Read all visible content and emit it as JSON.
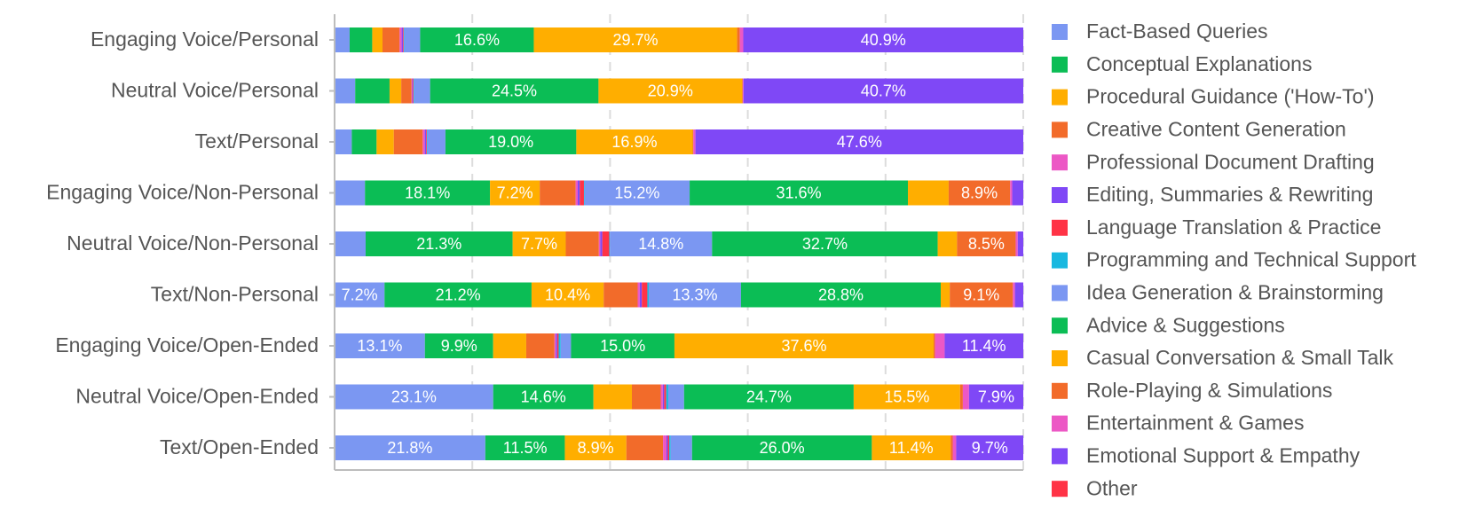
{
  "chart_data": {
    "type": "bar",
    "orientation": "horizontal",
    "stacked": true,
    "normalized_to_percent": true,
    "grid": true,
    "legend_position": "right",
    "xlabel": "",
    "ylabel": "",
    "categories": [
      "Engaging Voice/Personal",
      "Neutral Voice/Personal",
      "Text/Personal",
      "Engaging Voice/Non-Personal",
      "Neutral Voice/Non-Personal",
      "Text/Non-Personal",
      "Engaging Voice/Open-Ended",
      "Neutral Voice/Open-Ended",
      "Text/Open-Ended"
    ],
    "series": [
      {
        "name": "Fact-Based Queries",
        "color": "#7b97f2",
        "values": [
          2.2,
          3.0,
          2.5,
          4.4,
          4.5,
          7.2,
          13.1,
          23.1,
          21.8
        ]
      },
      {
        "name": "Conceptual Explanations",
        "color": "#0bbd55",
        "values": [
          3.3,
          5.0,
          3.6,
          18.1,
          21.3,
          21.2,
          9.9,
          14.6,
          11.5
        ]
      },
      {
        "name": "Procedural Guidance ('How-To')",
        "color": "#ffae00",
        "values": [
          1.5,
          1.7,
          2.5,
          7.2,
          7.7,
          10.4,
          4.8,
          5.6,
          8.9
        ]
      },
      {
        "name": "Creative Content Generation",
        "color": "#f26b2a",
        "values": [
          2.5,
          1.5,
          4.2,
          5.2,
          4.8,
          4.9,
          4.1,
          4.2,
          5.3
        ]
      },
      {
        "name": "Professional Document Drafting",
        "color": "#ec58c5",
        "values": [
          0.3,
          0.1,
          0.3,
          0.3,
          0.2,
          0.3,
          0.2,
          0.3,
          0.5
        ]
      },
      {
        "name": "Editing, Summaries & Rewriting",
        "color": "#7f48f6",
        "values": [
          0.2,
          0.1,
          0.2,
          0.3,
          0.3,
          0.3,
          0.2,
          0.2,
          0.2
        ]
      },
      {
        "name": "Language Translation & Practice",
        "color": "#ff3346",
        "values": [
          0.1,
          0.1,
          0.1,
          0.6,
          1.0,
          0.8,
          0.2,
          0.3,
          0.2
        ]
      },
      {
        "name": "Programming and Technical Support",
        "color": "#19b8e0",
        "values": [
          0.1,
          0.1,
          0.1,
          0.1,
          0.1,
          0.2,
          0.3,
          0.3,
          0.2
        ]
      },
      {
        "name": "Idea Generation & Brainstorming",
        "color": "#7b97f2",
        "values": [
          2.3,
          2.3,
          2.6,
          15.2,
          14.8,
          13.3,
          1.5,
          2.3,
          3.1
        ]
      },
      {
        "name": "Advice & Suggestions",
        "color": "#0bbd55",
        "values": [
          16.6,
          24.5,
          19.0,
          31.6,
          32.7,
          28.8,
          15.0,
          24.7,
          26.0
        ]
      },
      {
        "name": "Casual Conversation & Small Talk",
        "color": "#ffae00",
        "values": [
          29.7,
          20.9,
          16.9,
          5.9,
          2.8,
          1.3,
          37.6,
          15.5,
          11.4
        ]
      },
      {
        "name": "Role-Playing & Simulations",
        "color": "#f26b2a",
        "values": [
          0.4,
          0.1,
          0.1,
          8.9,
          8.5,
          9.1,
          0.2,
          0.4,
          0.3
        ]
      },
      {
        "name": "Entertainment & Games",
        "color": "#ec58c5",
        "values": [
          0.5,
          0.1,
          0.3,
          0.3,
          0.3,
          0.3,
          1.4,
          0.9,
          0.5
        ]
      },
      {
        "name": "Emotional Support & Empathy",
        "color": "#7f48f6",
        "values": [
          40.9,
          40.7,
          47.6,
          1.6,
          0.8,
          1.2,
          11.4,
          7.9,
          9.7
        ]
      },
      {
        "name": "Other",
        "color": "#ff3346",
        "values": [
          0.0,
          0.0,
          0.0,
          0.0,
          0.0,
          0.0,
          0.0,
          0.0,
          0.0
        ]
      }
    ],
    "xlim": [
      0,
      100
    ],
    "data_label_threshold": 7.0
  }
}
